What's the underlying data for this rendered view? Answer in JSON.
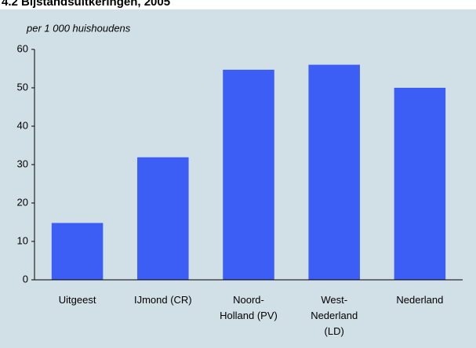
{
  "chart_data": {
    "type": "bar",
    "title": "4.2 Bijstandsuitkeringen, 2005",
    "subtitle": "per 1 000 huishoudens",
    "categories": [
      "Uitgeest",
      "IJmond (CR)",
      "Noord-\nHolland (PV)",
      "West-\nNederland\n(LD)",
      "Nederland"
    ],
    "values": [
      14.8,
      31.9,
      54.7,
      56,
      50
    ],
    "color": "#3d5ef5",
    "ylim": [
      0,
      60
    ],
    "yticks": [
      0,
      10,
      20,
      30,
      40,
      50,
      60
    ],
    "grid": false
  }
}
